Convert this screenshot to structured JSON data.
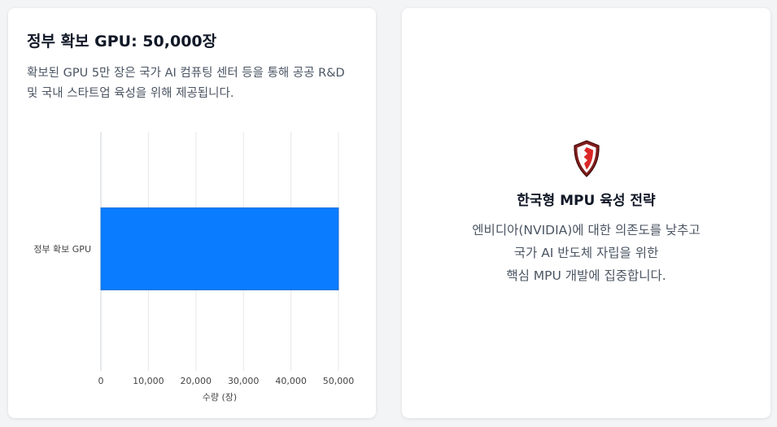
{
  "left_card": {
    "title": "정부 확보 GPU: 50,000장",
    "description": "확보된 GPU 5만 장은 국가 AI 컴퓨팅 센터 등을 통해 공공 R&D 및 국내 스타트업 육성을 위해 제공됩니다."
  },
  "chart_data": {
    "type": "bar",
    "orientation": "horizontal",
    "categories": [
      "정부 확보 GPU"
    ],
    "series": [
      {
        "values": [
          50000
        ],
        "color": "#0a7cff"
      }
    ],
    "xlabel": "수량 (장)",
    "ylabel": "",
    "xlim": [
      0,
      50000
    ],
    "xticks": [
      "0",
      "10,000",
      "20,000",
      "30,000",
      "40,000",
      "50,000"
    ],
    "xtick_values": [
      0,
      10000,
      20000,
      30000,
      40000,
      50000
    ],
    "grid": true
  },
  "right_card": {
    "icon": "shield-icon",
    "shield_colors": {
      "outer": "#7f1d1d",
      "inner": "#dc2626",
      "highlight": "#ffffff"
    },
    "title": "한국형 MPU 육성 전략",
    "description_lines": [
      "엔비디아(NVIDIA)에 대한 의존도를 낮추고",
      "국가 AI 반도체 자립을 위한",
      "핵심 MPU 개발에 집중합니다."
    ]
  }
}
